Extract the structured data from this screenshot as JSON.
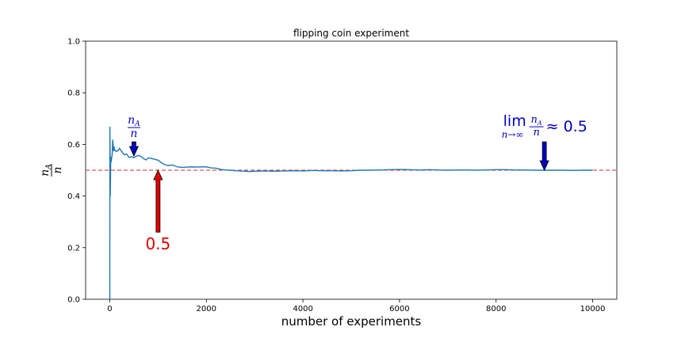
{
  "chart_data": {
    "type": "line",
    "title": "flipping coin experiment",
    "xlabel": "number of experiments",
    "ylabel": {
      "numerator": "n",
      "numerator_sub": "A",
      "denominator": "n"
    },
    "xlim": [
      -500,
      10500
    ],
    "ylim": [
      0.0,
      1.0
    ],
    "xticks": [
      0,
      2000,
      4000,
      6000,
      8000,
      10000
    ],
    "yticks": [
      0.0,
      0.2,
      0.4,
      0.6,
      0.8,
      1.0
    ],
    "xtick_labels": [
      "0",
      "2000",
      "4000",
      "6000",
      "8000",
      "10000"
    ],
    "ytick_labels": [
      "0.0",
      "0.2",
      "0.4",
      "0.6",
      "0.8",
      "1.0"
    ],
    "grid": false,
    "legend": false,
    "series": [
      {
        "color": "#1f77b4",
        "x": [
          1,
          2,
          3,
          5,
          8,
          10,
          15,
          20,
          30,
          40,
          50,
          60,
          70,
          80,
          90,
          100,
          120,
          150,
          180,
          200,
          250,
          300,
          350,
          400,
          450,
          500,
          550,
          600,
          650,
          700,
          750,
          800,
          900,
          1000,
          1100,
          1200,
          1300,
          1400,
          1500,
          1600,
          1700,
          1800,
          1900,
          2000,
          2100,
          2200,
          2300,
          2400,
          2500,
          2600,
          2700,
          2800,
          2900,
          3000,
          3200,
          3400,
          3600,
          3800,
          4000,
          4200,
          4400,
          4600,
          4800,
          5000,
          5200,
          5400,
          5600,
          5800,
          6000,
          6200,
          6400,
          6600,
          6800,
          7000,
          7200,
          7400,
          7600,
          7800,
          8000,
          8200,
          8400,
          8600,
          8800,
          9000,
          9200,
          9400,
          9600,
          9800,
          10000
        ],
        "y": [
          0.0,
          0.5,
          0.667,
          0.6,
          0.5,
          0.4,
          0.467,
          0.55,
          0.533,
          0.55,
          0.56,
          0.617,
          0.6,
          0.575,
          0.589,
          0.58,
          0.575,
          0.573,
          0.578,
          0.585,
          0.572,
          0.56,
          0.563,
          0.549,
          0.553,
          0.548,
          0.555,
          0.557,
          0.553,
          0.545,
          0.54,
          0.548,
          0.544,
          0.539,
          0.525,
          0.518,
          0.52,
          0.513,
          0.511,
          0.512,
          0.513,
          0.512,
          0.513,
          0.513,
          0.509,
          0.508,
          0.503,
          0.501,
          0.5,
          0.498,
          0.497,
          0.496,
          0.495,
          0.496,
          0.497,
          0.496,
          0.497,
          0.498,
          0.497,
          0.499,
          0.498,
          0.498,
          0.497,
          0.498,
          0.5,
          0.5,
          0.501,
          0.502,
          0.503,
          0.502,
          0.501,
          0.502,
          0.501,
          0.5,
          0.501,
          0.501,
          0.5,
          0.501,
          0.502,
          0.502,
          0.501,
          0.501,
          0.5,
          0.5,
          0.5,
          0.5,
          0.499,
          0.5,
          0.5
        ]
      }
    ],
    "reference_line": {
      "y": 0.5,
      "color": "#d62728",
      "style": "dashed"
    },
    "annotations": [
      {
        "id": "ratio",
        "kind": "fraction",
        "numerator": "n",
        "numerator_sub": "A",
        "denominator": "n",
        "color": "#0000c0",
        "arrow_from": [
          500,
          0.61
        ],
        "arrow_to": [
          500,
          0.555
        ]
      },
      {
        "id": "half",
        "text": "0.5",
        "color": "#e00000",
        "arrow_from": [
          1000,
          0.26
        ],
        "arrow_to": [
          1000,
          0.5
        ]
      },
      {
        "id": "limit",
        "kind": "limit",
        "lim_word": "lim",
        "lim_sub": "n→∞",
        "numerator": "n",
        "numerator_sub": "A",
        "denominator": "n",
        "rhs": "≈ 0.5",
        "color": "#0000c0",
        "arrow_from": [
          9000,
          0.61
        ],
        "arrow_to": [
          9000,
          0.5
        ]
      }
    ]
  }
}
